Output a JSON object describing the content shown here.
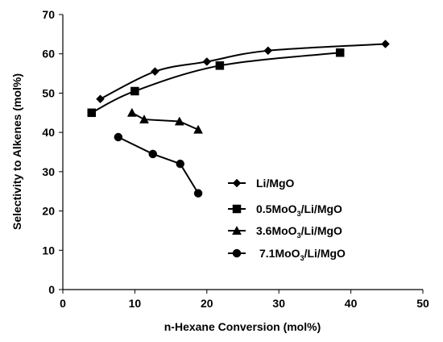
{
  "chart_data": {
    "type": "scatter",
    "xlabel": "n-Hexane Conversion (mol%)",
    "ylabel": "Selectivity to Alkenes (mol%)",
    "xlim": [
      0,
      50
    ],
    "ylim": [
      0,
      70
    ],
    "xticks": [
      "0",
      "10",
      "20",
      "30",
      "40",
      "50"
    ],
    "yticks": [
      "0",
      "10",
      "20",
      "30",
      "40",
      "50",
      "60",
      "70"
    ],
    "legend_position": "right",
    "grid": false,
    "series": [
      {
        "name": "Li/MgO",
        "name_parts": [
          {
            "t": "Li/MgO"
          }
        ],
        "marker": "diamond",
        "curve": "smooth",
        "x": [
          5.2,
          12.8,
          20.0,
          28.5,
          44.8
        ],
        "y": [
          48.5,
          55.5,
          58.0,
          60.8,
          62.5
        ]
      },
      {
        "name": "0.5MoO3/Li/MgO",
        "name_parts": [
          {
            "t": "0.5MoO"
          },
          {
            "t": "3",
            "sub": true
          },
          {
            "t": "/Li/MgO"
          }
        ],
        "marker": "square",
        "curve": "smooth",
        "x": [
          4.0,
          10.0,
          21.8,
          38.5
        ],
        "y": [
          45.0,
          50.5,
          57.0,
          60.3
        ]
      },
      {
        "name": "3.6MoO3/Li/MgO",
        "name_parts": [
          {
            "t": "3.6MoO"
          },
          {
            "t": "3",
            "sub": true
          },
          {
            "t": "/Li/MgO"
          }
        ],
        "marker": "triangle",
        "curve": "linear",
        "x": [
          9.6,
          11.3,
          16.2,
          18.8
        ],
        "y": [
          45.0,
          43.3,
          42.8,
          40.7
        ]
      },
      {
        "name": "7.1MoO3/Li/MgO",
        "name_parts": [
          {
            "t": "7.1MoO"
          },
          {
            "t": "3",
            "sub": true
          },
          {
            "t": "/Li/MgO"
          }
        ],
        "marker": "circle",
        "curve": "linear",
        "x": [
          7.7,
          12.5,
          16.3,
          18.8
        ],
        "y": [
          38.8,
          34.5,
          32.0,
          24.5
        ]
      }
    ]
  }
}
